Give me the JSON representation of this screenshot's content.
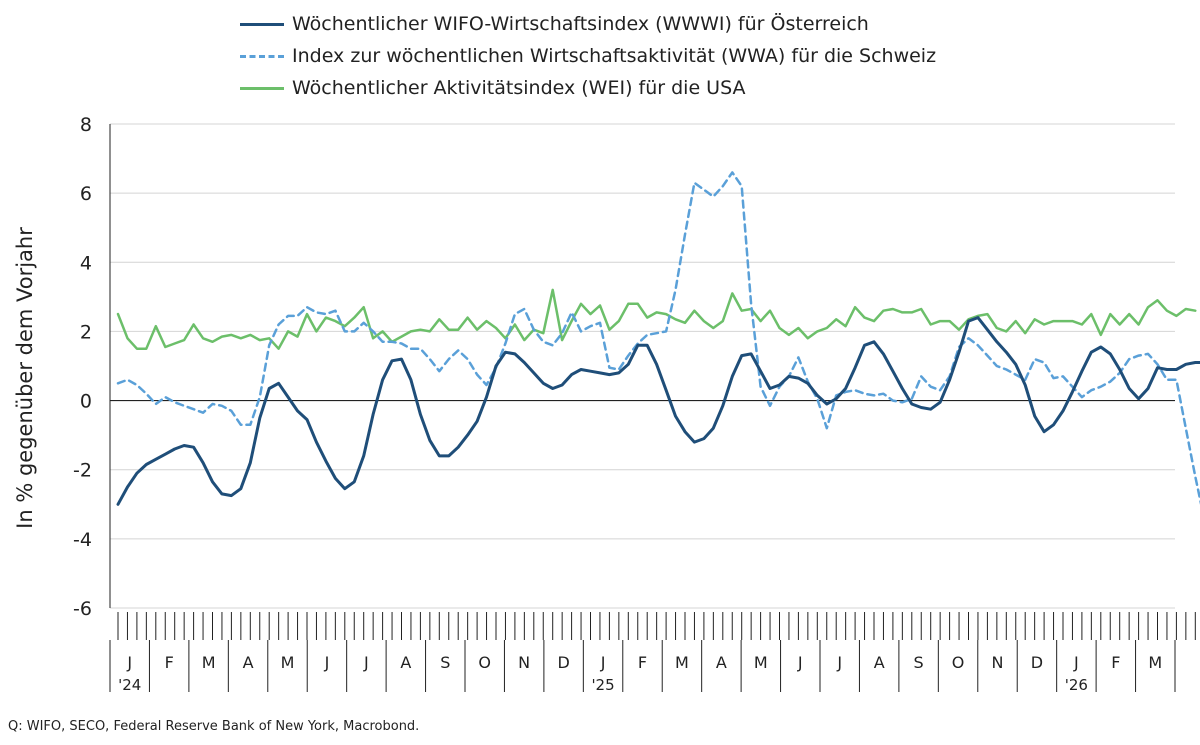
{
  "source": "Q: WIFO, SECO, Federal Reserve Bank of New York, Macrobond.",
  "chart_data": {
    "type": "line",
    "title": "",
    "xlabel": "",
    "ylabel": "In % gegenüber dem Vorjahr",
    "ylim": [
      -6,
      8
    ],
    "yticks": [
      8,
      6,
      4,
      2,
      0,
      -2,
      -4,
      -6
    ],
    "x_start": "2024-01-05",
    "x_frequency": "weekly",
    "x_ticks": [
      {
        "label": "J",
        "year": "'24"
      },
      {
        "label": "F"
      },
      {
        "label": "M"
      },
      {
        "label": "A"
      },
      {
        "label": "M"
      },
      {
        "label": "J"
      },
      {
        "label": "J"
      },
      {
        "label": "A"
      },
      {
        "label": "S"
      },
      {
        "label": "O"
      },
      {
        "label": "N"
      },
      {
        "label": "D"
      },
      {
        "label": "J",
        "year": "'25"
      },
      {
        "label": "F"
      },
      {
        "label": "M"
      },
      {
        "label": "A"
      },
      {
        "label": "M"
      },
      {
        "label": "J"
      },
      {
        "label": "J"
      },
      {
        "label": "A"
      },
      {
        "label": "S"
      },
      {
        "label": "O"
      },
      {
        "label": "N"
      },
      {
        "label": "D"
      },
      {
        "label": "J",
        "year": "'26"
      },
      {
        "label": "F"
      },
      {
        "label": "M"
      }
    ],
    "series": [
      {
        "name": "Wöchentlicher WIFO-Wirtschaftsindex (WWWI) für Österreich",
        "color": "#1f4e79",
        "style": "solid",
        "values": [
          -3.0,
          -2.5,
          -2.1,
          -1.85,
          -1.7,
          -1.55,
          -1.4,
          -1.3,
          -1.35,
          -1.8,
          -2.35,
          -2.7,
          -2.75,
          -2.55,
          -1.8,
          -0.5,
          0.35,
          0.5,
          0.1,
          -0.3,
          -0.55,
          -1.2,
          -1.75,
          -2.25,
          -2.55,
          -2.35,
          -1.6,
          -0.4,
          0.6,
          1.15,
          1.2,
          0.6,
          -0.4,
          -1.15,
          -1.6,
          -1.6,
          -1.35,
          -1.0,
          -0.6,
          0.1,
          1.0,
          1.4,
          1.35,
          1.1,
          0.8,
          0.5,
          0.35,
          0.45,
          0.75,
          0.9,
          0.85,
          0.8,
          0.75,
          0.8,
          1.05,
          1.6,
          1.6,
          1.05,
          0.3,
          -0.45,
          -0.9,
          -1.2,
          -1.1,
          -0.8,
          -0.15,
          0.7,
          1.3,
          1.35,
          0.85,
          0.35,
          0.45,
          0.7,
          0.65,
          0.5,
          0.15,
          -0.1,
          0.05,
          0.35,
          0.95,
          1.6,
          1.7,
          1.35,
          0.85,
          0.35,
          -0.1,
          -0.2,
          -0.25,
          -0.05,
          0.6,
          1.4,
          2.3,
          2.4,
          2.05,
          1.7,
          1.4,
          1.05,
          0.45,
          -0.45,
          -0.9,
          -0.7,
          -0.3,
          0.25,
          0.85,
          1.4,
          1.55,
          1.35,
          0.9,
          0.35,
          0.05,
          0.35,
          0.95,
          0.9,
          0.9,
          1.05,
          1.1,
          1.1
        ]
      },
      {
        "name": "Index zur wöchentlichen Wirtschaftsaktivität (WWA) für die Schweiz",
        "color": "#5aa0d8",
        "style": "dashed",
        "values": [
          0.5,
          0.6,
          0.45,
          0.2,
          -0.1,
          0.1,
          -0.05,
          -0.15,
          -0.25,
          -0.35,
          -0.1,
          -0.15,
          -0.3,
          -0.7,
          -0.7,
          0.1,
          1.6,
          2.2,
          2.45,
          2.45,
          2.7,
          2.55,
          2.5,
          2.6,
          2.0,
          2.0,
          2.25,
          2.0,
          1.7,
          1.7,
          1.65,
          1.5,
          1.5,
          1.2,
          0.85,
          1.2,
          1.45,
          1.2,
          0.75,
          0.45,
          0.95,
          1.65,
          2.5,
          2.65,
          2.05,
          1.7,
          1.6,
          1.95,
          2.55,
          2.0,
          2.15,
          2.25,
          0.95,
          0.9,
          1.3,
          1.65,
          1.9,
          1.95,
          2.0,
          3.2,
          4.8,
          6.3,
          6.1,
          5.9,
          6.2,
          6.6,
          6.2,
          2.8,
          0.4,
          -0.15,
          0.4,
          0.7,
          1.25,
          0.55,
          0.05,
          -0.8,
          0.15,
          0.25,
          0.3,
          0.2,
          0.15,
          0.2,
          0.0,
          -0.05,
          0.05,
          0.7,
          0.4,
          0.3,
          0.7,
          1.55,
          1.8,
          1.6,
          1.3,
          1.0,
          0.9,
          0.75,
          0.6,
          1.2,
          1.1,
          0.65,
          0.7,
          0.4,
          0.1,
          0.3,
          0.4,
          0.55,
          0.8,
          1.2,
          1.3,
          1.35,
          1.05,
          0.6,
          0.6,
          -0.8,
          -2.2,
          -3.5
        ]
      },
      {
        "name": "Wöchentlicher Aktivitätsindex (WEI) für die USA",
        "color": "#6cbf6a",
        "style": "solid",
        "values": [
          2.5,
          1.8,
          1.5,
          1.5,
          2.15,
          1.55,
          1.65,
          1.75,
          2.2,
          1.8,
          1.7,
          1.85,
          1.9,
          1.8,
          1.9,
          1.75,
          1.8,
          1.5,
          2.0,
          1.85,
          2.5,
          2.0,
          2.4,
          2.3,
          2.15,
          2.4,
          2.7,
          1.8,
          2.0,
          1.7,
          1.85,
          2.0,
          2.05,
          2.0,
          2.35,
          2.05,
          2.05,
          2.4,
          2.05,
          2.3,
          2.1,
          1.8,
          2.2,
          1.75,
          2.05,
          1.95,
          3.2,
          1.75,
          2.3,
          2.8,
          2.5,
          2.75,
          2.05,
          2.3,
          2.8,
          2.8,
          2.4,
          2.55,
          2.5,
          2.35,
          2.25,
          2.6,
          2.3,
          2.1,
          2.3,
          3.1,
          2.6,
          2.65,
          2.3,
          2.6,
          2.1,
          1.9,
          2.1,
          1.8,
          2.0,
          2.1,
          2.35,
          2.15,
          2.7,
          2.4,
          2.3,
          2.6,
          2.65,
          2.55,
          2.55,
          2.65,
          2.2,
          2.3,
          2.3,
          2.05,
          2.35,
          2.45,
          2.5,
          2.1,
          2.0,
          2.3,
          1.95,
          2.35,
          2.2,
          2.3,
          2.3,
          2.3,
          2.2,
          2.5,
          1.9,
          2.5,
          2.2,
          2.5,
          2.2,
          2.7,
          2.9,
          2.6,
          2.45,
          2.65,
          2.6
        ]
      }
    ]
  }
}
